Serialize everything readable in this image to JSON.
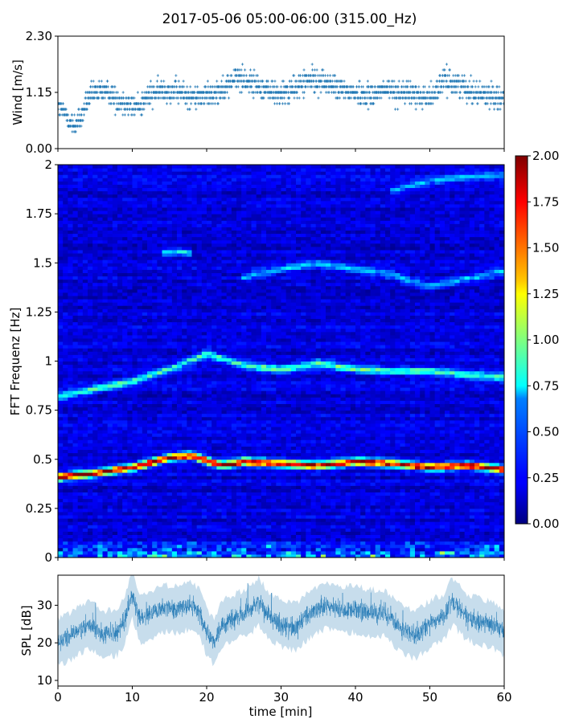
{
  "figure": {
    "title": "2017-05-06 05:00-06:00 (315.00_Hz)"
  },
  "chart_data": [
    {
      "type": "scatter",
      "panel": "wind",
      "ylabel": "Wind [m/s]",
      "xlabel": "",
      "xlim": [
        0,
        60
      ],
      "ylim": [
        0,
        2.3
      ],
      "yticks": [
        "0.00",
        "1.15",
        "2.30"
      ],
      "grid": false,
      "marker": "+",
      "color": "#1f77b4",
      "quantization_step": 0.115,
      "trend": {
        "x": [
          0,
          1,
          2,
          3,
          4,
          5,
          6,
          7,
          8,
          9,
          10,
          11,
          12,
          14,
          16,
          18,
          20,
          22,
          24,
          26,
          28,
          30,
          32,
          34,
          36,
          38,
          40,
          42,
          44,
          46,
          48,
          50,
          52,
          54,
          56,
          58,
          60
        ],
        "y": [
          0.85,
          0.7,
          0.45,
          0.6,
          1.0,
          1.15,
          1.2,
          1.1,
          1.0,
          0.95,
          0.85,
          0.9,
          1.05,
          1.2,
          1.15,
          1.05,
          1.1,
          1.2,
          1.45,
          1.35,
          1.2,
          1.1,
          1.25,
          1.4,
          1.35,
          1.2,
          1.15,
          1.1,
          1.2,
          1.15,
          1.1,
          1.05,
          1.4,
          1.3,
          1.15,
          1.1,
          1.05
        ]
      }
    },
    {
      "type": "heatmap",
      "panel": "spectrogram",
      "ylabel": "FFT Frequenz [Hz]",
      "xlabel": "",
      "xlim": [
        0,
        60
      ],
      "ylim": [
        0,
        2
      ],
      "yticks": [
        "0",
        "0.25",
        "0.5",
        "0.75",
        "1",
        "1.25",
        "1.5",
        "1.75",
        "2"
      ],
      "colormap": "jet",
      "colorbar": {
        "range": [
          0,
          2
        ],
        "ticks": [
          "0.00",
          "0.25",
          "0.50",
          "0.75",
          "1.00",
          "1.25",
          "1.50",
          "1.75",
          "2.00"
        ]
      },
      "background_level": 0.18,
      "ridges": [
        {
          "x": [
            0,
            5,
            10,
            15,
            18,
            22,
            25,
            30,
            35,
            40,
            45,
            50,
            55,
            60
          ],
          "f": [
            0.41,
            0.43,
            0.46,
            0.51,
            0.52,
            0.47,
            0.49,
            0.48,
            0.47,
            0.49,
            0.48,
            0.46,
            0.47,
            0.45
          ],
          "level": 1.9
        },
        {
          "x": [
            0,
            5,
            10,
            15,
            20,
            25,
            30,
            35,
            40,
            45,
            50,
            55,
            60
          ],
          "f": [
            0.82,
            0.86,
            0.9,
            0.96,
            1.04,
            0.98,
            0.96,
            0.99,
            0.96,
            0.95,
            0.95,
            0.93,
            0.92
          ],
          "level": 0.75
        },
        {
          "x": [
            14,
            16,
            18
          ],
          "f": [
            1.55,
            1.56,
            1.55
          ],
          "level": 0.55
        },
        {
          "x": [
            25,
            30,
            35,
            40,
            45,
            50,
            55,
            60
          ],
          "f": [
            1.43,
            1.47,
            1.5,
            1.47,
            1.44,
            1.38,
            1.42,
            1.46
          ],
          "level": 0.45
        },
        {
          "x": [
            45,
            50,
            55,
            60
          ],
          "f": [
            1.87,
            1.92,
            1.94,
            1.95
          ],
          "level": 0.4
        }
      ],
      "low_freq_energy": {
        "f_max": 0.1,
        "level": 1.2
      }
    },
    {
      "type": "line",
      "panel": "spl",
      "ylabel": "SPL [dB]",
      "xlabel": "time [min]",
      "xlim": [
        0,
        60
      ],
      "ylim": [
        8.5,
        38
      ],
      "yticks": [
        "10",
        "20",
        "30"
      ],
      "xticks": [
        "0",
        "10",
        "20",
        "30",
        "40",
        "50",
        "60"
      ],
      "grid": false,
      "color": "#1f77b4",
      "series": [
        {
          "x": [
            0,
            2,
            4,
            5,
            6,
            8,
            9,
            10,
            11,
            12,
            14,
            16,
            18,
            19,
            20,
            21,
            22,
            24,
            26,
            27,
            28,
            30,
            32,
            34,
            36,
            38,
            40,
            42,
            44,
            46,
            48,
            50,
            52,
            53,
            54,
            55,
            56,
            58,
            60
          ],
          "y": [
            20,
            22,
            25,
            24,
            22,
            23,
            26,
            33,
            26,
            27,
            29,
            29,
            30,
            28,
            23,
            20,
            25,
            27,
            29,
            31,
            28,
            25,
            24,
            28,
            30,
            29,
            29,
            28,
            28,
            24,
            22,
            25,
            27,
            31,
            29,
            27,
            26,
            25,
            23
          ],
          "spread": [
            4,
            4,
            4,
            4,
            4,
            4,
            4,
            4,
            4,
            4,
            4,
            4,
            4,
            4,
            4,
            4,
            4,
            4,
            4,
            4,
            4,
            4,
            4,
            4,
            4,
            4,
            4,
            4,
            4,
            4,
            4,
            4,
            4,
            4,
            4,
            4,
            4,
            4,
            4
          ]
        }
      ]
    }
  ]
}
